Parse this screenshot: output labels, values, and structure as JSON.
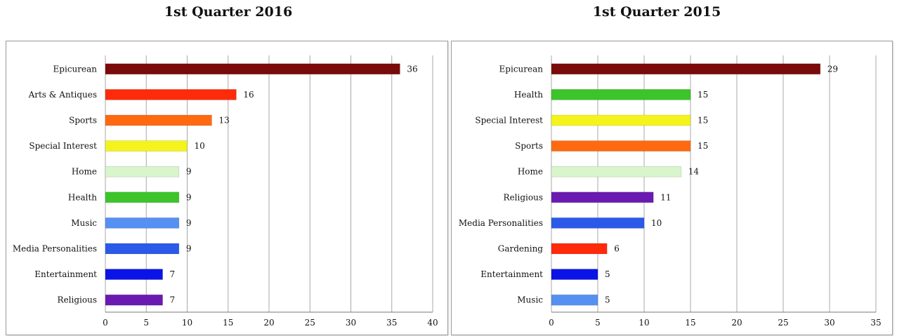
{
  "chart_data": [
    {
      "type": "bar",
      "orientation": "horizontal",
      "title": "1st Quarter 2016",
      "categories": [
        "Epicurean",
        "Arts & Antiques",
        "Sports",
        "Special Interest",
        "Home",
        "Health",
        "Music",
        "Media Personalities",
        "Entertainment",
        "Religious"
      ],
      "values": [
        36,
        16,
        13,
        10,
        9,
        9,
        9,
        9,
        7,
        7
      ],
      "colors": [
        "#7b0a0a",
        "#ff2a0a",
        "#ff6a10",
        "#f4f41c",
        "#d8f5cc",
        "#3cc42a",
        "#5590f2",
        "#2b5ae8",
        "#0a14e6",
        "#6a1ab0"
      ],
      "xlim": [
        0,
        40
      ],
      "xticks": [
        0,
        5,
        10,
        15,
        20,
        25,
        30,
        35,
        40
      ],
      "grid": "vertical",
      "data_labels": true
    },
    {
      "type": "bar",
      "orientation": "horizontal",
      "title": "1st Quarter 2015",
      "categories": [
        "Epicurean",
        "Health",
        "Special Interest",
        "Sports",
        "Home",
        "Religious",
        "Media Personalities",
        "Gardening",
        "Entertainment",
        "Music"
      ],
      "values": [
        29,
        15,
        15,
        15,
        14,
        11,
        10,
        6,
        5,
        5
      ],
      "colors": [
        "#7b0a0a",
        "#3cc42a",
        "#f4f41c",
        "#ff6a10",
        "#d8f5cc",
        "#6a1ab0",
        "#2b5ae8",
        "#ff2a0a",
        "#0a14e6",
        "#5590f2"
      ],
      "xlim": [
        0,
        35
      ],
      "xticks": [
        0,
        5,
        10,
        15,
        20,
        25,
        30,
        35
      ],
      "grid": "vertical",
      "data_labels": true
    }
  ]
}
